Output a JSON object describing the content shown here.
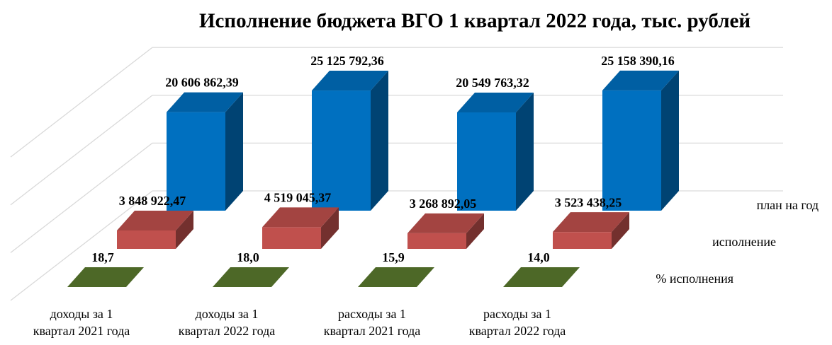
{
  "chart_data": {
    "type": "bar3d",
    "title": "Исполнение бюджета ВГО 1 квартал 2022 года, тыс. рублей",
    "categories": [
      "доходы за 1\nквартал 2021 года",
      "доходы за 1\nквартал 2022 года",
      "расходы за 1\nквартал 2021 года",
      "расходы за 1\nквартал 2022 года"
    ],
    "series": [
      {
        "name": "план на год",
        "color": "#0070c0",
        "values": [
          20606862.39,
          25125792.36,
          20549763.32,
          25158390.16
        ],
        "value_labels": [
          "20 606 862,39",
          "25 125 792,36",
          "20 549 763,32",
          "25 158 390,16"
        ]
      },
      {
        "name": "исполнение",
        "color": "#c0504d",
        "values": [
          3848922.47,
          4519045.37,
          3268892.05,
          3523438.25
        ],
        "value_labels": [
          "3 848 922,47",
          "4 519 045,37",
          "3 268 892,05",
          "3 523 438,25"
        ]
      },
      {
        "name": "% исполнения",
        "color": "#5a7a2e",
        "values": [
          18.7,
          18.0,
          15.9,
          14.0
        ],
        "value_labels": [
          "18,7",
          "18,0",
          "15,9",
          "14,0"
        ]
      }
    ],
    "ylim": [
      0,
      30000000
    ],
    "yticks": [
      0,
      10000000,
      20000000,
      30000000
    ],
    "grid": true
  }
}
